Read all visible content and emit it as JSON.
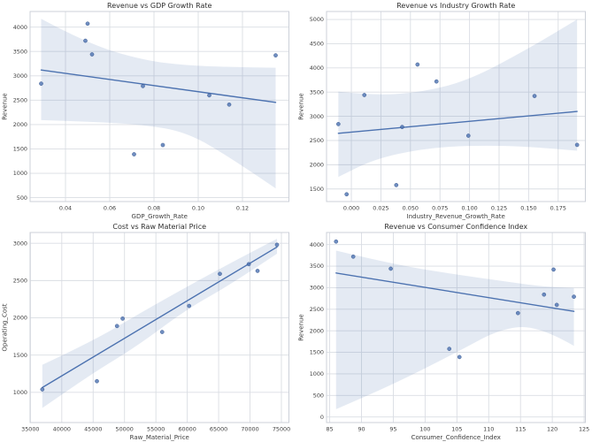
{
  "figure": {
    "background": "#ffffff",
    "rows": 2,
    "cols": 2
  },
  "style": {
    "line_color": "#4c72b0",
    "marker_fill": "#4c72b0",
    "marker_edge": "#35558e",
    "marker_opacity": 0.8,
    "band_color": "#4c72b0",
    "band_opacity": 0.15,
    "grid_color": "#dadde3",
    "spine_color": "#ccd0d8",
    "title_color": "#2e2e2e",
    "tick_color": "#3d3d3d"
  },
  "chart_data": [
    {
      "type": "scatter",
      "title": "Revenue vs GDP Growth Rate",
      "xlabel": "GDP_Growth_Rate",
      "ylabel": "Revenue",
      "legend": "none",
      "grid": true,
      "xlim": [
        0.024,
        0.141
      ],
      "ylim": [
        420,
        4320
      ],
      "xticks": {
        "values": [
          0.04,
          0.06,
          0.08,
          0.1,
          0.12
        ],
        "labels": [
          "0.04",
          "0.06",
          "0.08",
          "0.10",
          "0.12"
        ]
      },
      "yticks": {
        "values": [
          500,
          1000,
          1500,
          2000,
          2500,
          3000,
          3500,
          4000
        ],
        "labels": [
          "500",
          "1000",
          "1500",
          "2000",
          "2500",
          "3000",
          "3500",
          "4000"
        ]
      },
      "points": [
        [
          0.029,
          2840
        ],
        [
          0.049,
          3720
        ],
        [
          0.05,
          4070
        ],
        [
          0.052,
          3440
        ],
        [
          0.071,
          1390
        ],
        [
          0.075,
          2790
        ],
        [
          0.084,
          1580
        ],
        [
          0.105,
          2600
        ],
        [
          0.114,
          2410
        ],
        [
          0.135,
          3420
        ]
      ],
      "trend_line": {
        "x1": 0.029,
        "y1": 3120,
        "x2": 0.135,
        "y2": 2455
      },
      "confidence_band": {
        "x": [
          0.029,
          0.05,
          0.075,
          0.095,
          0.115,
          0.135
        ],
        "upper": [
          4170,
          3660,
          3320,
          3210,
          3180,
          3165
        ],
        "lower": [
          2090,
          2060,
          2000,
          1840,
          1310,
          690
        ]
      }
    },
    {
      "type": "scatter",
      "title": "Revenue vs Industry Growth Rate",
      "xlabel": "Industry_Revenue_Growth_Rate",
      "ylabel": "Revenue",
      "legend": "none",
      "grid": true,
      "xlim": [
        -0.021,
        0.198
      ],
      "ylim": [
        1240,
        5165
      ],
      "xticks": {
        "values": [
          0.0,
          0.025,
          0.05,
          0.075,
          0.1,
          0.125,
          0.15,
          0.175
        ],
        "labels": [
          "0.000",
          "0.025",
          "0.050",
          "0.075",
          "0.100",
          "0.125",
          "0.150",
          "0.175"
        ]
      },
      "yticks": {
        "values": [
          1500,
          2000,
          2500,
          3000,
          3500,
          4000,
          4500,
          5000
        ],
        "labels": [
          "1500",
          "2000",
          "2500",
          "3000",
          "3500",
          "4000",
          "4500",
          "5000"
        ]
      },
      "points": [
        [
          -0.011,
          2840
        ],
        [
          -0.004,
          1390
        ],
        [
          0.011,
          3440
        ],
        [
          0.038,
          1580
        ],
        [
          0.043,
          2780
        ],
        [
          0.056,
          4070
        ],
        [
          0.072,
          3720
        ],
        [
          0.099,
          2600
        ],
        [
          0.155,
          3420
        ],
        [
          0.191,
          2410
        ]
      ],
      "trend_line": {
        "x1": -0.011,
        "y1": 2650,
        "x2": 0.191,
        "y2": 3100
      },
      "confidence_band": {
        "x": [
          -0.011,
          0.02,
          0.06,
          0.1,
          0.15,
          0.191
        ],
        "upper": [
          3510,
          3430,
          3500,
          3750,
          4400,
          5000
        ],
        "lower": [
          1750,
          2120,
          2330,
          2400,
          2380,
          2290
        ]
      }
    },
    {
      "type": "scatter",
      "title": "Cost vs Raw Material Price",
      "xlabel": "Raw_Material_Price",
      "ylabel": "Operating_Cost",
      "legend": "none",
      "grid": true,
      "xlim": [
        34950,
        76200
      ],
      "ylim": [
        595,
        3145
      ],
      "xticks": {
        "values": [
          35000,
          40000,
          45000,
          50000,
          55000,
          60000,
          65000,
          70000,
          75000
        ],
        "labels": [
          "35000",
          "40000",
          "45000",
          "50000",
          "55000",
          "60000",
          "65000",
          "70000",
          "75000"
        ]
      },
      "yticks": {
        "values": [
          1000,
          1500,
          2000,
          2500,
          3000
        ],
        "labels": [
          "1000",
          "1500",
          "2000",
          "2500",
          "3000"
        ]
      },
      "points": [
        [
          36900,
          1040
        ],
        [
          45600,
          1150
        ],
        [
          48800,
          1890
        ],
        [
          49700,
          1990
        ],
        [
          56000,
          1810
        ],
        [
          60300,
          2160
        ],
        [
          65200,
          2590
        ],
        [
          69800,
          2720
        ],
        [
          71200,
          2630
        ],
        [
          74300,
          2980
        ]
      ],
      "trend_line": {
        "x1": 36900,
        "y1": 1065,
        "x2": 74300,
        "y2": 2950
      },
      "confidence_band": {
        "x": [
          36900,
          45000,
          52000,
          60000,
          67000,
          74300
        ],
        "upper": [
          1370,
          1690,
          2040,
          2420,
          2740,
          3060
        ],
        "lower": [
          790,
          1260,
          1620,
          2120,
          2450,
          2860
        ]
      }
    },
    {
      "type": "scatter",
      "title": "Revenue vs Consumer Confidence Index",
      "xlabel": "Consumer_Confidence_Index",
      "ylabel": "Revenue",
      "legend": "none",
      "grid": true,
      "xlim": [
        84.5,
        125.2
      ],
      "ylim": [
        -130,
        4280
      ],
      "xticks": {
        "values": [
          85,
          90,
          95,
          100,
          105,
          110,
          115,
          120,
          125
        ],
        "labels": [
          "85",
          "90",
          "95",
          "100",
          "105",
          "110",
          "115",
          "120",
          "125"
        ]
      },
      "yticks": {
        "values": [
          0,
          500,
          1000,
          1500,
          2000,
          2500,
          3000,
          3500,
          4000
        ],
        "labels": [
          "0",
          "500",
          "1000",
          "1500",
          "2000",
          "2500",
          "3000",
          "3500",
          "4000"
        ]
      },
      "points": [
        [
          86.0,
          4070
        ],
        [
          88.7,
          3720
        ],
        [
          94.6,
          3440
        ],
        [
          103.8,
          1580
        ],
        [
          105.4,
          1390
        ],
        [
          114.6,
          2410
        ],
        [
          118.7,
          2840
        ],
        [
          120.2,
          3420
        ],
        [
          120.7,
          2600
        ],
        [
          123.4,
          2790
        ]
      ],
      "trend_line": {
        "x1": 86.0,
        "y1": 3340,
        "x2": 123.4,
        "y2": 2450
      },
      "confidence_band": {
        "x": [
          86.0,
          95.0,
          105.0,
          112.0,
          118.0,
          123.4
        ],
        "upper": [
          3860,
          3540,
          3300,
          3160,
          3030,
          2990
        ],
        "lower": [
          180,
          760,
          1500,
          2060,
          2110,
          1650
        ]
      }
    }
  ]
}
